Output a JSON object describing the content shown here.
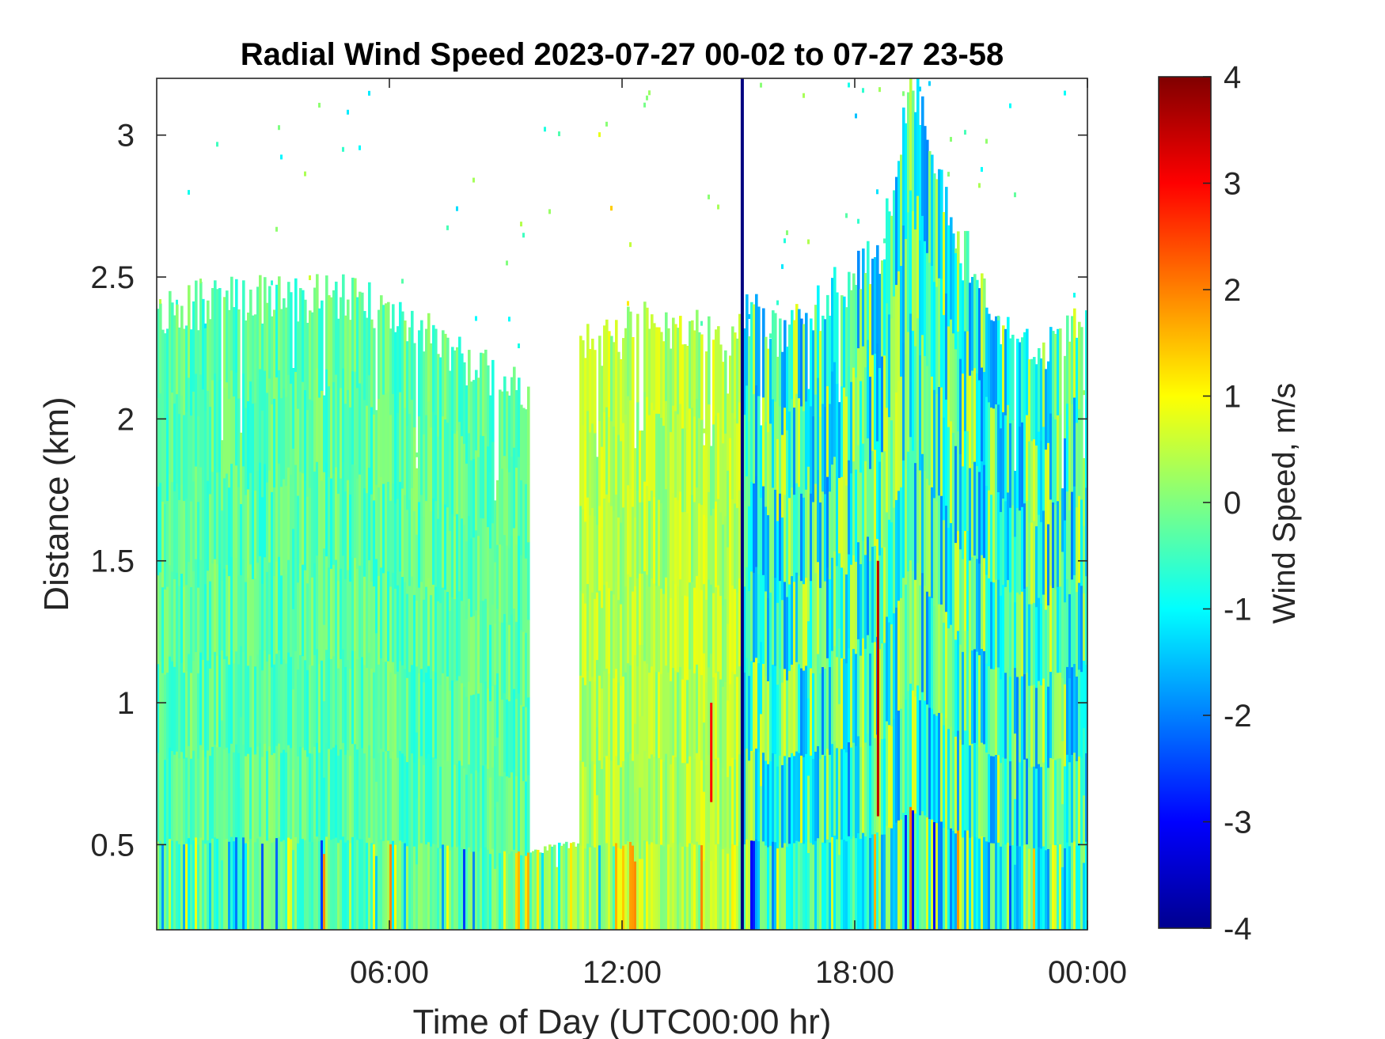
{
  "chart_data": {
    "type": "heatmap",
    "title": "Radial Wind Speed 2023-07-27 00-02 to 07-27 23-58",
    "xlabel": "Time of Day (UTC00:00 hr)",
    "ylabel": "Distance (km)",
    "x_unit": "hours UTC",
    "xlim": [
      0,
      24
    ],
    "ylim": [
      0.2,
      3.2
    ],
    "x_ticks": [
      {
        "value": 6,
        "label": "06:00"
      },
      {
        "value": 12,
        "label": "12:00"
      },
      {
        "value": 18,
        "label": "18:00"
      },
      {
        "value": 24,
        "label": "00:00"
      }
    ],
    "y_ticks": [
      {
        "value": 0.5,
        "label": "0.5"
      },
      {
        "value": 1,
        "label": "1"
      },
      {
        "value": 1.5,
        "label": "1.5"
      },
      {
        "value": 2,
        "label": "2"
      },
      {
        "value": 2.5,
        "label": "2.5"
      },
      {
        "value": 3,
        "label": "3"
      }
    ],
    "colorbar": {
      "label": "Wind Speed, m/s",
      "clim": [
        -4,
        4
      ],
      "colormap": "jet",
      "ticks": [
        {
          "value": 4,
          "label": "4"
        },
        {
          "value": 3,
          "label": "3"
        },
        {
          "value": 2,
          "label": "2"
        },
        {
          "value": 1,
          "label": "1"
        },
        {
          "value": 0,
          "label": "0"
        },
        {
          "value": -1,
          "label": "-1"
        },
        {
          "value": -2,
          "label": "-2"
        },
        {
          "value": -3,
          "label": "-3"
        },
        {
          "value": -4,
          "label": "-4"
        }
      ],
      "gradient_colors": [
        "#00008f",
        "#0000ff",
        "#0080ff",
        "#00ffff",
        "#80ff80",
        "#ffff00",
        "#ff8000",
        "#ff0000",
        "#800000"
      ]
    },
    "grid": false,
    "data_top_profile": {
      "description_hours": [
        0,
        1,
        2,
        3,
        4,
        5,
        6,
        7,
        8,
        9,
        9.6,
        10.3,
        11,
        11.5,
        12,
        12.5,
        13,
        14,
        15,
        15.1,
        16,
        17,
        18,
        18.7,
        19.5,
        20.5,
        21.5,
        22,
        23,
        24
      ],
      "top_km": [
        2.35,
        2.4,
        2.42,
        2.45,
        2.42,
        2.43,
        2.38,
        2.3,
        2.2,
        2.15,
        2.05,
        2.28,
        2.3,
        2.25,
        2.3,
        2.42,
        2.32,
        2.3,
        2.28,
        2.4,
        2.3,
        2.4,
        2.5,
        2.6,
        3.2,
        2.7,
        2.4,
        2.3,
        2.25,
        2.35
      ]
    },
    "gap_regions": [
      {
        "x_range": [
          9.6,
          10.9
        ],
        "y_range": [
          0.5,
          3.2
        ]
      }
    ],
    "dominant_values": [
      {
        "x_range": [
          0,
          9.6
        ],
        "typical_speed": -0.3
      },
      {
        "x_range": [
          10.9,
          15.1
        ],
        "typical_speed": 0.4
      },
      {
        "x_range": [
          15.1,
          24
        ],
        "typical_speed": -0.6
      }
    ],
    "notable_features": [
      {
        "x": 15.1,
        "y_range": [
          0.2,
          3.2
        ],
        "speed": -4
      },
      {
        "x": 18.6,
        "y_range": [
          0.6,
          1.5
        ],
        "speed": 3.5
      },
      {
        "x": 14.3,
        "y_range": [
          0.65,
          1.0
        ],
        "speed": 3.0
      }
    ]
  }
}
